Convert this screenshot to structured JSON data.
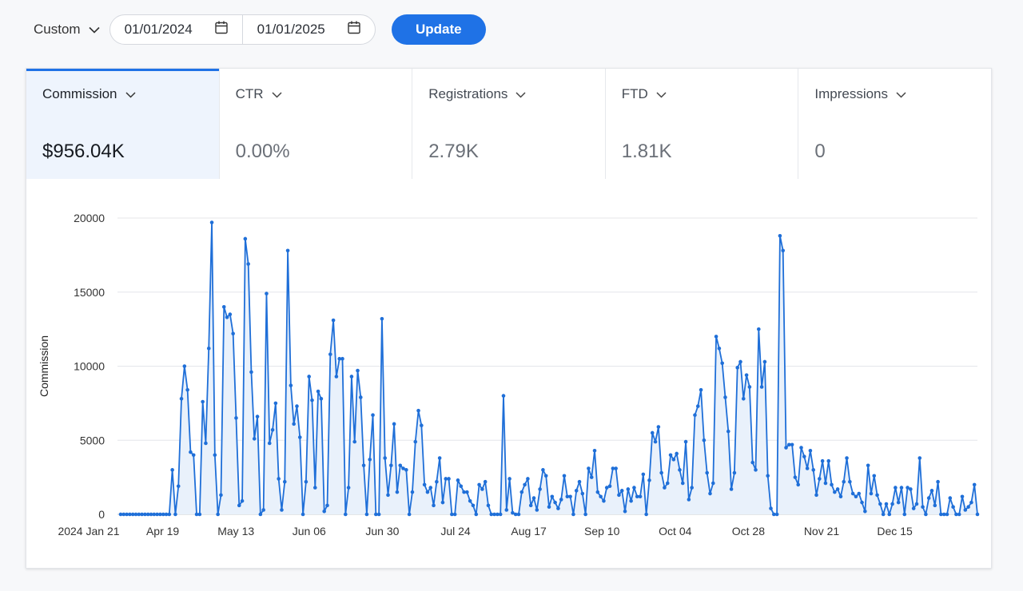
{
  "toolbar": {
    "range_label": "Custom",
    "start_date": "01/01/2024",
    "end_date": "01/01/2025",
    "update_label": "Update"
  },
  "metrics": [
    {
      "label": "Commission",
      "value": "$956.04K",
      "active": true
    },
    {
      "label": "CTR",
      "value": "0.00%",
      "active": false
    },
    {
      "label": "Registrations",
      "value": "2.79K",
      "active": false
    },
    {
      "label": "FTD",
      "value": "1.81K",
      "active": false
    },
    {
      "label": "Impressions",
      "value": "0",
      "active": false
    }
  ],
  "colors": {
    "accent": "#1f72e6",
    "line": "#1f6fd8",
    "area": "#e9f1fb"
  },
  "chart_data": {
    "type": "area",
    "ylabel": "Commission",
    "ylim": [
      0,
      20000
    ],
    "yticks": [
      0,
      5000,
      10000,
      15000,
      20000
    ],
    "ytick_labels": [
      "0",
      "5000",
      "10000",
      "15000",
      "20000"
    ],
    "xtick_labels": [
      "2024 Jan 21",
      "Apr 19",
      "May 13",
      "Jun 06",
      "Jun 30",
      "Jul 24",
      "Aug 17",
      "Sep 10",
      "Oct 04",
      "Oct 28",
      "Nov 21",
      "Dec 15"
    ],
    "grid": true,
    "legend": "none",
    "series": [
      {
        "values": [
          0,
          0,
          0,
          0,
          0,
          0,
          0,
          0,
          0,
          0,
          0,
          0,
          0,
          0,
          0,
          0,
          0,
          3000,
          0,
          1900,
          7800,
          10000,
          8400,
          4200,
          4000,
          0,
          0,
          7600,
          4800,
          11200,
          19700,
          4000,
          0,
          1300,
          14000,
          13300,
          13500,
          12200,
          6500,
          600,
          900,
          18600,
          16900,
          9600,
          5100,
          6600,
          0,
          300,
          14900,
          4800,
          5700,
          7500,
          2400,
          300,
          2200,
          17800,
          8700,
          6100,
          7300,
          5200,
          0,
          2200,
          9300,
          7700,
          1800,
          8300,
          7800,
          200,
          600,
          10800,
          13100,
          9300,
          10500,
          10500,
          0,
          1800,
          9300,
          4900,
          9700,
          7900,
          3300,
          0,
          3700,
          6700,
          0,
          0,
          13200,
          3800,
          1300,
          3300,
          6100,
          1500,
          3300,
          3100,
          3000,
          0,
          1500,
          4900,
          7000,
          6000,
          2000,
          1500,
          1800,
          600,
          2200,
          3800,
          800,
          2400,
          2400,
          0,
          0,
          2300,
          1900,
          1500,
          1500,
          900,
          600,
          0,
          2000,
          1700,
          2200,
          600,
          0,
          0,
          0,
          0,
          8000,
          300,
          2400,
          100,
          0,
          0,
          1500,
          2000,
          2400,
          600,
          1100,
          300,
          1700,
          3000,
          2600,
          500,
          1200,
          800,
          400,
          1000,
          2600,
          1200,
          1200,
          0,
          1600,
          2200,
          1400,
          0,
          3100,
          2500,
          4300,
          1500,
          1200,
          900,
          1800,
          1900,
          3100,
          3100,
          1300,
          1600,
          200,
          1700,
          900,
          1800,
          1200,
          1200,
          2700,
          0,
          2300,
          5500,
          4900,
          5900,
          2800,
          1800,
          2100,
          4000,
          3700,
          4100,
          3000,
          2100,
          4900,
          1000,
          1800,
          6700,
          7300,
          8400,
          5000,
          2800,
          1400,
          2100,
          12000,
          11200,
          10200,
          7900,
          5600,
          1700,
          2800,
          9900,
          10300,
          7800,
          9400,
          8600,
          3500,
          3000,
          12500,
          8600,
          10300,
          2600,
          400,
          0,
          0,
          18800,
          17800,
          4500,
          4700,
          4700,
          2500,
          2000,
          4500,
          3900,
          3100,
          4300,
          3000,
          1300,
          2400,
          3600,
          2100,
          3600,
          2000,
          1500,
          1700,
          1200,
          2200,
          3800,
          2200,
          1400,
          1200,
          1400,
          800,
          200,
          3300,
          1400,
          2600,
          1300,
          700,
          0,
          700,
          0,
          700,
          1800,
          800,
          1800,
          0,
          1800,
          1700,
          400,
          700,
          3800,
          500,
          0,
          1100,
          1600,
          600,
          2200,
          0,
          0,
          0,
          1100,
          500,
          0,
          0,
          1200,
          300,
          500,
          800,
          2000,
          0
        ]
      }
    ]
  }
}
